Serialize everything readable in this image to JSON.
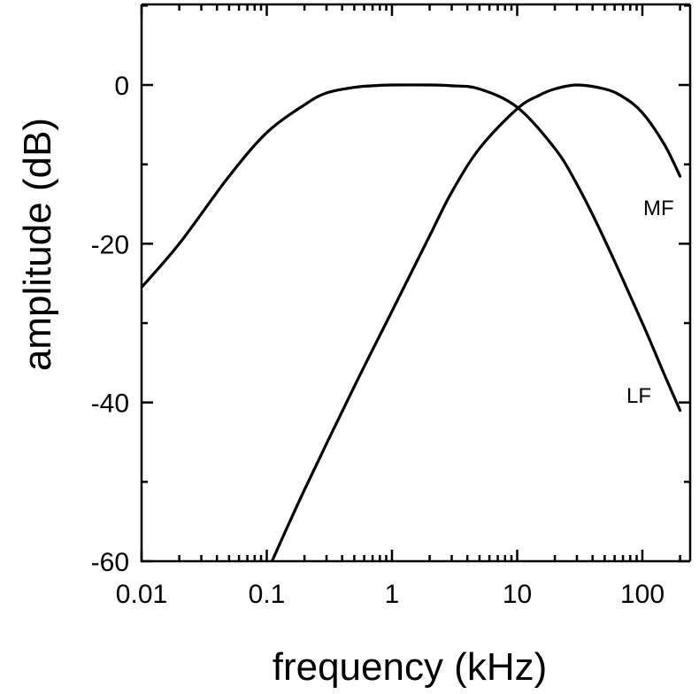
{
  "chart_data": {
    "type": "line",
    "xlabel": "frequency (kHz)",
    "ylabel": "amplitude (dB)",
    "xscale": "log",
    "xlim": [
      0.01,
      200
    ],
    "ylim": [
      -60,
      10
    ],
    "x_ticks": [
      0.01,
      0.1,
      1,
      10,
      100
    ],
    "x_tick_labels": [
      "0.01",
      "0.1",
      "1",
      "10",
      "100"
    ],
    "y_ticks": [
      0,
      -20,
      -40,
      -60
    ],
    "y_tick_labels": [
      "0",
      "-20",
      "-40",
      "-60"
    ],
    "grid": false,
    "series": [
      {
        "name": "LF",
        "x": [
          0.01,
          0.02,
          0.05,
          0.1,
          0.2,
          0.3,
          0.5,
          0.7,
          1,
          2,
          3,
          5,
          10,
          20,
          30,
          50,
          100,
          150,
          200
        ],
        "y": [
          -25.5,
          -20,
          -11.5,
          -6,
          -2.5,
          -1,
          -0.3,
          -0.1,
          0,
          0,
          -0.1,
          -0.5,
          -2.8,
          -8,
          -12.5,
          -19.5,
          -30,
          -36.5,
          -41
        ]
      },
      {
        "name": "MF",
        "x": [
          0.11,
          0.2,
          0.5,
          1,
          2,
          3,
          5,
          10,
          15,
          20,
          30,
          50,
          70,
          100,
          150,
          200
        ],
        "y": [
          -60,
          -51,
          -38,
          -28.5,
          -19,
          -13.5,
          -8,
          -3,
          -1.3,
          -0.5,
          0,
          -0.5,
          -1.5,
          -3.5,
          -7.5,
          -11.5
        ]
      }
    ]
  }
}
